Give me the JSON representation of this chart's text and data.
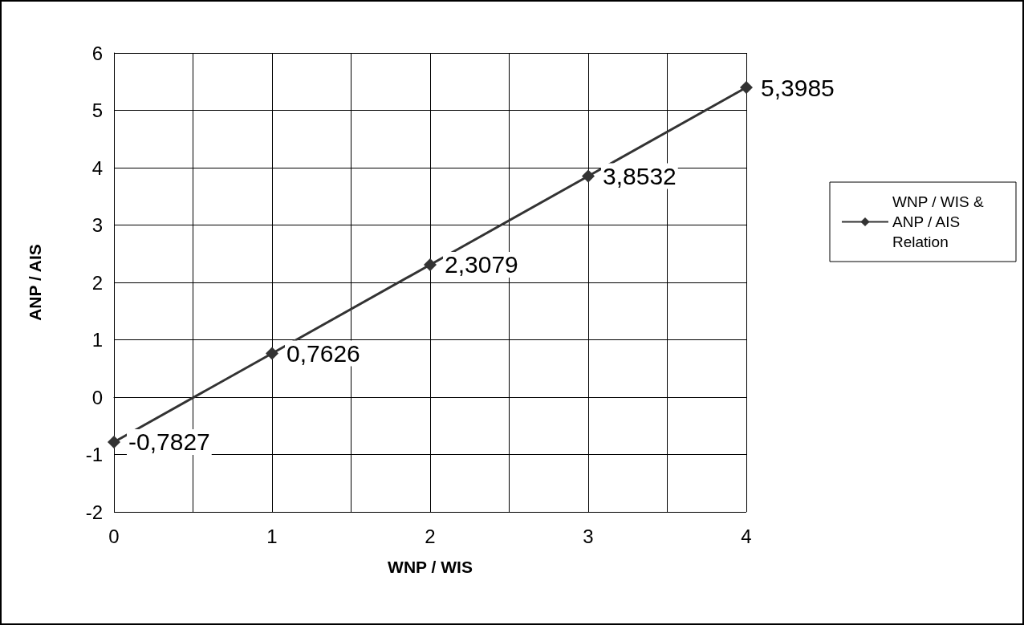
{
  "chart_data": {
    "type": "line",
    "xlabel": "WNP / WIS",
    "ylabel": "ANP / AIS",
    "x": [
      0,
      1,
      2,
      3,
      4
    ],
    "series": [
      {
        "name": "WNP / WIS & ANP / AIS Relation",
        "color": "#333333",
        "values": [
          -0.7827,
          0.7626,
          2.3079,
          3.8532,
          5.3985
        ],
        "value_labels": [
          "-0,7827",
          "0,7626",
          "2,3079",
          "3,8532",
          "5,3985"
        ]
      }
    ],
    "xlim": [
      0,
      4
    ],
    "xticks": [
      0,
      {
        "value": 0.5,
        "label": null
      },
      1,
      {
        "value": 1.5,
        "label": null
      },
      2,
      {
        "value": 2.5,
        "label": null
      },
      3,
      {
        "value": 3.5,
        "label": null
      },
      4
    ],
    "ylim": [
      -2,
      6
    ],
    "yticks": [
      -2,
      -1,
      0,
      1,
      2,
      3,
      4,
      5,
      6
    ],
    "grid": true,
    "legend": "right",
    "marker": "diamond",
    "line_style": "solid"
  }
}
